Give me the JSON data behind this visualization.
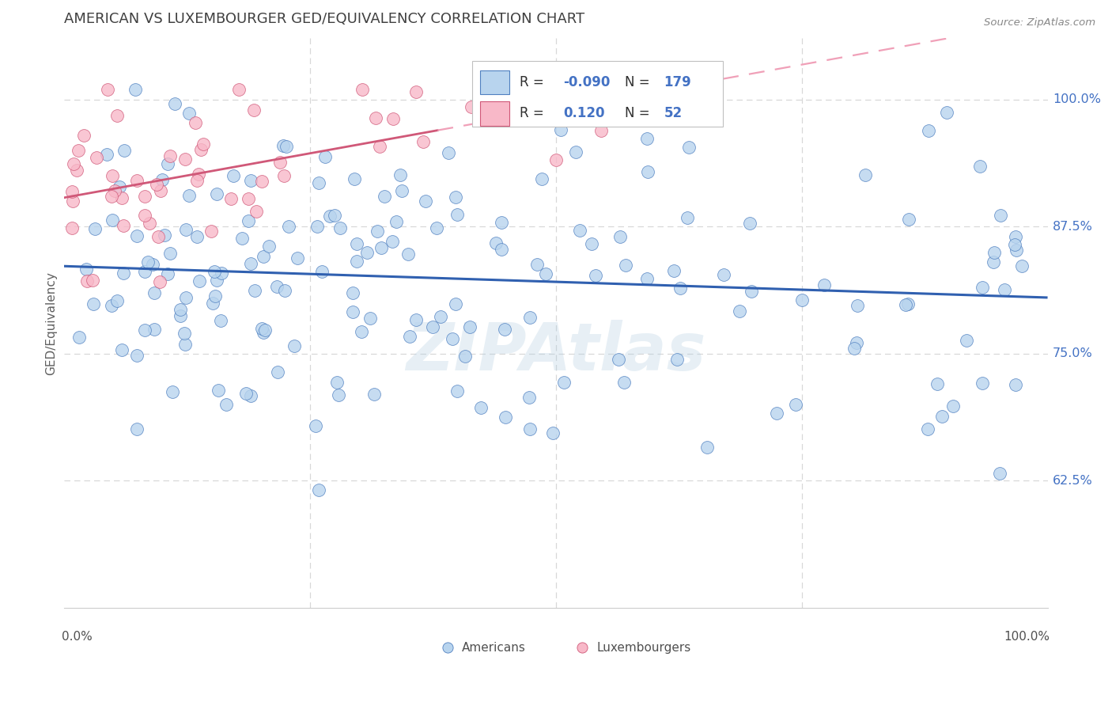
{
  "title": "AMERICAN VS LUXEMBOURGER GED/EQUIVALENCY CORRELATION CHART",
  "source": "Source: ZipAtlas.com",
  "ylabel": "GED/Equivalency",
  "ytick_labels": [
    "62.5%",
    "75.0%",
    "87.5%",
    "100.0%"
  ],
  "ytick_values": [
    0.625,
    0.75,
    0.875,
    1.0
  ],
  "xlim": [
    0.0,
    1.0
  ],
  "ylim": [
    0.5,
    1.06
  ],
  "legend_R_american": "-0.090",
  "legend_N_american": "179",
  "legend_R_luxembourger": "0.120",
  "legend_N_luxembourger": "52",
  "american_fill": "#b8d4ee",
  "american_edge": "#5080c0",
  "luxembourger_fill": "#f8b8c8",
  "luxembourger_edge": "#d05878",
  "american_line_color": "#3060b0",
  "luxembourger_solid_color": "#d05878",
  "luxembourger_dash_color": "#f0a0b8",
  "text_blue": "#4472c4",
  "text_dark": "#303030",
  "background_color": "#ffffff",
  "grid_color": "#d8d8d8",
  "title_color": "#404040",
  "watermark": "ZIPAtlas",
  "seed": 42
}
